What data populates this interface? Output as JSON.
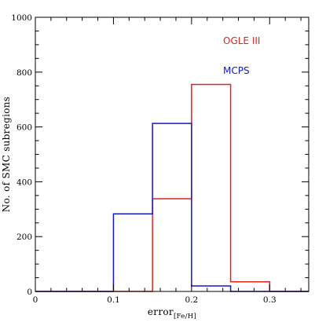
{
  "chart_data": {
    "type": "histogram",
    "xlabel_main": "error",
    "xlabel_sub": "[Fe/H]",
    "ylabel": "No. of SMC subregions",
    "xlim": [
      0,
      0.35
    ],
    "ylim": [
      0,
      1000
    ],
    "x_ticks": [
      0,
      0.1,
      0.2,
      0.3
    ],
    "x_tick_labels": [
      "0",
      "0.1",
      "0.2",
      "0.3"
    ],
    "y_ticks": [
      0,
      200,
      400,
      600,
      800,
      1000
    ],
    "y_tick_labels": [
      "0",
      "200",
      "400",
      "600",
      "800",
      "1000"
    ],
    "bin_edges": [
      0,
      0.05,
      0.1,
      0.15,
      0.2,
      0.25,
      0.3,
      0.35
    ],
    "series": [
      {
        "name": "OGLE III",
        "color": "#e8201c",
        "values": [
          0,
          0,
          0,
          338,
          755,
          35,
          0
        ]
      },
      {
        "name": "MCPS",
        "color": "#1515d8",
        "values": [
          0,
          0,
          283,
          613,
          20,
          0,
          0
        ]
      }
    ],
    "legend_position": "top-right",
    "grid": false
  }
}
